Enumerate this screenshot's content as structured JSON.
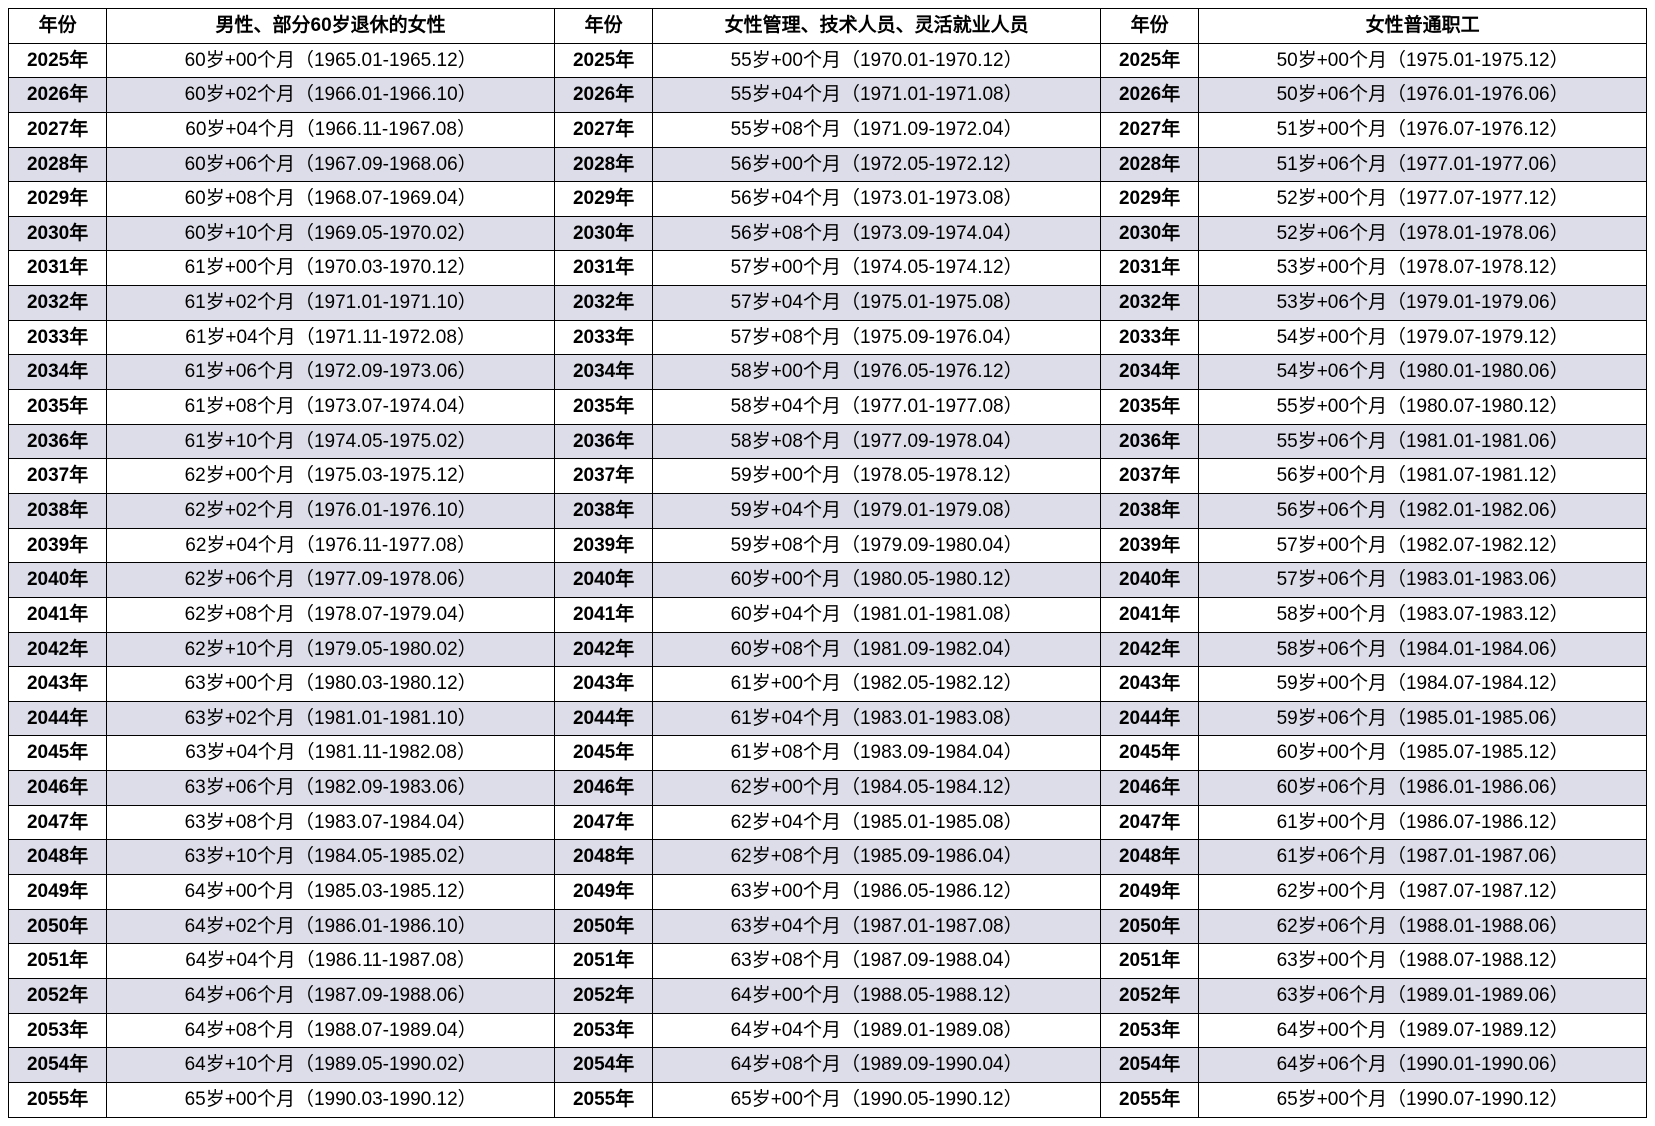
{
  "table": {
    "type": "table",
    "background_color": "#ffffff",
    "alt_row_color": "#dcdde8",
    "border_color": "#000000",
    "font_family": "Microsoft YaHei",
    "header_fontsize": 19,
    "cell_fontsize": 19,
    "columns": [
      {
        "key": "year1",
        "label": "年份",
        "width_pct": 6.0,
        "align": "center",
        "bold": true
      },
      {
        "key": "col1",
        "label": "男性、部分60岁退休的女性",
        "width_pct": 27.33,
        "align": "center"
      },
      {
        "key": "year2",
        "label": "年份",
        "width_pct": 6.0,
        "align": "center",
        "bold": true
      },
      {
        "key": "col2",
        "label": "女性管理、技术人员、灵活就业人员",
        "width_pct": 27.33,
        "align": "center"
      },
      {
        "key": "year3",
        "label": "年份",
        "width_pct": 6.0,
        "align": "center",
        "bold": true
      },
      {
        "key": "col3",
        "label": "女性普通职工",
        "width_pct": 27.33,
        "align": "center"
      }
    ],
    "rows": [
      {
        "year": "2025年",
        "c1": "60岁+00个月（1965.01-1965.12）",
        "c2": "55岁+00个月（1970.01-1970.12）",
        "c3": "50岁+00个月（1975.01-1975.12）"
      },
      {
        "year": "2026年",
        "c1": "60岁+02个月（1966.01-1966.10）",
        "c2": "55岁+04个月（1971.01-1971.08）",
        "c3": "50岁+06个月（1976.01-1976.06）"
      },
      {
        "year": "2027年",
        "c1": "60岁+04个月（1966.11-1967.08）",
        "c2": "55岁+08个月（1971.09-1972.04）",
        "c3": "51岁+00个月（1976.07-1976.12）"
      },
      {
        "year": "2028年",
        "c1": "60岁+06个月（1967.09-1968.06）",
        "c2": "56岁+00个月（1972.05-1972.12）",
        "c3": "51岁+06个月（1977.01-1977.06）"
      },
      {
        "year": "2029年",
        "c1": "60岁+08个月（1968.07-1969.04）",
        "c2": "56岁+04个月（1973.01-1973.08）",
        "c3": "52岁+00个月（1977.07-1977.12）"
      },
      {
        "year": "2030年",
        "c1": "60岁+10个月（1969.05-1970.02）",
        "c2": "56岁+08个月（1973.09-1974.04）",
        "c3": "52岁+06个月（1978.01-1978.06）"
      },
      {
        "year": "2031年",
        "c1": "61岁+00个月（1970.03-1970.12）",
        "c2": "57岁+00个月（1974.05-1974.12）",
        "c3": "53岁+00个月（1978.07-1978.12）"
      },
      {
        "year": "2032年",
        "c1": "61岁+02个月（1971.01-1971.10）",
        "c2": "57岁+04个月（1975.01-1975.08）",
        "c3": "53岁+06个月（1979.01-1979.06）"
      },
      {
        "year": "2033年",
        "c1": "61岁+04个月（1971.11-1972.08）",
        "c2": "57岁+08个月（1975.09-1976.04）",
        "c3": "54岁+00个月（1979.07-1979.12）"
      },
      {
        "year": "2034年",
        "c1": "61岁+06个月（1972.09-1973.06）",
        "c2": "58岁+00个月（1976.05-1976.12）",
        "c3": "54岁+06个月（1980.01-1980.06）"
      },
      {
        "year": "2035年",
        "c1": "61岁+08个月（1973.07-1974.04）",
        "c2": "58岁+04个月（1977.01-1977.08）",
        "c3": "55岁+00个月（1980.07-1980.12）"
      },
      {
        "year": "2036年",
        "c1": "61岁+10个月（1974.05-1975.02）",
        "c2": "58岁+08个月（1977.09-1978.04）",
        "c3": "55岁+06个月（1981.01-1981.06）"
      },
      {
        "year": "2037年",
        "c1": "62岁+00个月（1975.03-1975.12）",
        "c2": "59岁+00个月（1978.05-1978.12）",
        "c3": "56岁+00个月（1981.07-1981.12）"
      },
      {
        "year": "2038年",
        "c1": "62岁+02个月（1976.01-1976.10）",
        "c2": "59岁+04个月（1979.01-1979.08）",
        "c3": "56岁+06个月（1982.01-1982.06）"
      },
      {
        "year": "2039年",
        "c1": "62岁+04个月（1976.11-1977.08）",
        "c2": "59岁+08个月（1979.09-1980.04）",
        "c3": "57岁+00个月（1982.07-1982.12）"
      },
      {
        "year": "2040年",
        "c1": "62岁+06个月（1977.09-1978.06）",
        "c2": "60岁+00个月（1980.05-1980.12）",
        "c3": "57岁+06个月（1983.01-1983.06）"
      },
      {
        "year": "2041年",
        "c1": "62岁+08个月（1978.07-1979.04）",
        "c2": "60岁+04个月（1981.01-1981.08）",
        "c3": "58岁+00个月（1983.07-1983.12）"
      },
      {
        "year": "2042年",
        "c1": "62岁+10个月（1979.05-1980.02）",
        "c2": "60岁+08个月（1981.09-1982.04）",
        "c3": "58岁+06个月（1984.01-1984.06）"
      },
      {
        "year": "2043年",
        "c1": "63岁+00个月（1980.03-1980.12）",
        "c2": "61岁+00个月（1982.05-1982.12）",
        "c3": "59岁+00个月（1984.07-1984.12）"
      },
      {
        "year": "2044年",
        "c1": "63岁+02个月（1981.01-1981.10）",
        "c2": "61岁+04个月（1983.01-1983.08）",
        "c3": "59岁+06个月（1985.01-1985.06）"
      },
      {
        "year": "2045年",
        "c1": "63岁+04个月（1981.11-1982.08）",
        "c2": "61岁+08个月（1983.09-1984.04）",
        "c3": "60岁+00个月（1985.07-1985.12）"
      },
      {
        "year": "2046年",
        "c1": "63岁+06个月（1982.09-1983.06）",
        "c2": "62岁+00个月（1984.05-1984.12）",
        "c3": "60岁+06个月（1986.01-1986.06）"
      },
      {
        "year": "2047年",
        "c1": "63岁+08个月（1983.07-1984.04）",
        "c2": "62岁+04个月（1985.01-1985.08）",
        "c3": "61岁+00个月（1986.07-1986.12）"
      },
      {
        "year": "2048年",
        "c1": "63岁+10个月（1984.05-1985.02）",
        "c2": "62岁+08个月（1985.09-1986.04）",
        "c3": "61岁+06个月（1987.01-1987.06）"
      },
      {
        "year": "2049年",
        "c1": "64岁+00个月（1985.03-1985.12）",
        "c2": "63岁+00个月（1986.05-1986.12）",
        "c3": "62岁+00个月（1987.07-1987.12）"
      },
      {
        "year": "2050年",
        "c1": "64岁+02个月（1986.01-1986.10）",
        "c2": "63岁+04个月（1987.01-1987.08）",
        "c3": "62岁+06个月（1988.01-1988.06）"
      },
      {
        "year": "2051年",
        "c1": "64岁+04个月（1986.11-1987.08）",
        "c2": "63岁+08个月（1987.09-1988.04）",
        "c3": "63岁+00个月（1988.07-1988.12）"
      },
      {
        "year": "2052年",
        "c1": "64岁+06个月（1987.09-1988.06）",
        "c2": "64岁+00个月（1988.05-1988.12）",
        "c3": "63岁+06个月（1989.01-1989.06）"
      },
      {
        "year": "2053年",
        "c1": "64岁+08个月（1988.07-1989.04）",
        "c2": "64岁+04个月（1989.01-1989.08）",
        "c3": "64岁+00个月（1989.07-1989.12）"
      },
      {
        "year": "2054年",
        "c1": "64岁+10个月（1989.05-1990.02）",
        "c2": "64岁+08个月（1989.09-1990.04）",
        "c3": "64岁+06个月（1990.01-1990.06）"
      },
      {
        "year": "2055年",
        "c1": "65岁+00个月（1990.03-1990.12）",
        "c2": "65岁+00个月（1990.05-1990.12）",
        "c3": "65岁+00个月（1990.07-1990.12）"
      }
    ]
  }
}
